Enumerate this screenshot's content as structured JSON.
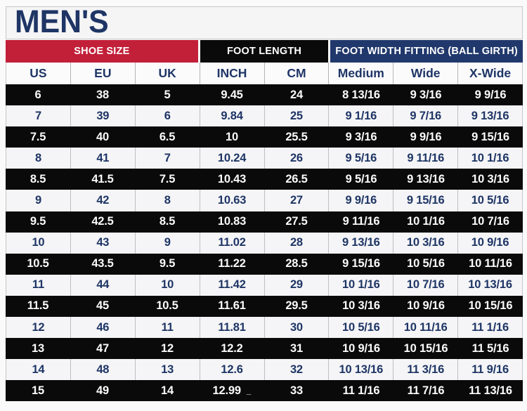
{
  "title": "MEN'S",
  "colors": {
    "title_navy": "#1E3565",
    "group_red": "#C21F39",
    "group_black": "#0A0A0B",
    "group_navy": "#20386B",
    "row_dark_bg": "#0A0A0B",
    "row_light_bg": "#F5F5F7",
    "row_light_text": "#1E3565",
    "row_dark_text": "#FAFAFA",
    "border_gray": "#C7C7CA"
  },
  "header_groups": [
    {
      "label": "SHOE SIZE",
      "color": "#C21F39",
      "columns_span": 3
    },
    {
      "label": "FOOT LENGTH",
      "color": "#0A0A0B",
      "columns_span": 2
    },
    {
      "label": "FOOT WIDTH FITTING (BALL GIRTH)",
      "color": "#20386B",
      "columns_span": 3
    }
  ],
  "stray_mark": "_",
  "chart_data": {
    "type": "table",
    "title": "MEN'S",
    "column_groups": [
      {
        "label": "SHOE SIZE",
        "columns": [
          "US",
          "EU",
          "UK"
        ]
      },
      {
        "label": "FOOT LENGTH",
        "columns": [
          "INCH",
          "CM"
        ]
      },
      {
        "label": "FOOT WIDTH FITTING (BALL GIRTH)",
        "columns": [
          "Medium",
          "Wide",
          "X-Wide"
        ]
      }
    ],
    "columns": [
      "US",
      "EU",
      "UK",
      "INCH",
      "CM",
      "Medium",
      "Wide",
      "X-Wide"
    ],
    "rows": [
      [
        "6",
        "38",
        "5",
        "9.45",
        "24",
        "8 13/16",
        "9 3/16",
        "9 9/16"
      ],
      [
        "7",
        "39",
        "6",
        "9.84",
        "25",
        "9 1/16",
        "9 7/16",
        "9 13/16"
      ],
      [
        "7.5",
        "40",
        "6.5",
        "10",
        "25.5",
        "9 3/16",
        "9 9/16",
        "9 15/16"
      ],
      [
        "8",
        "41",
        "7",
        "10.24",
        "26",
        "9 5/16",
        "9 11/16",
        "10 1/16"
      ],
      [
        "8.5",
        "41.5",
        "7.5",
        "10.43",
        "26.5",
        "9 5/16",
        "9 13/16",
        "10 3/16"
      ],
      [
        "9",
        "42",
        "8",
        "10.63",
        "27",
        "9 9/16",
        "9 15/16",
        "10 5/16"
      ],
      [
        "9.5",
        "42.5",
        "8.5",
        "10.83",
        "27.5",
        "9 11/16",
        "10 1/16",
        "10 7/16"
      ],
      [
        "10",
        "43",
        "9",
        "11.02",
        "28",
        "9 13/16",
        "10 3/16",
        "10 9/16"
      ],
      [
        "10.5",
        "43.5",
        "9.5",
        "11.22",
        "28.5",
        "9 15/16",
        "10 5/16",
        "10 11/16"
      ],
      [
        "11",
        "44",
        "10",
        "11.42",
        "29",
        "10 1/16",
        "10 7/16",
        "10 13/16"
      ],
      [
        "11.5",
        "45",
        "10.5",
        "11.61",
        "29.5",
        "10 3/16",
        "10 9/16",
        "10 15/16"
      ],
      [
        "12",
        "46",
        "11",
        "11.81",
        "30",
        "10 5/16",
        "10 11/16",
        "11 1/16"
      ],
      [
        "13",
        "47",
        "12",
        "12.2",
        "31",
        "10 9/16",
        "10 15/16",
        "11 5/16"
      ],
      [
        "14",
        "48",
        "13",
        "12.6",
        "32",
        "10 13/16",
        "11 3/16",
        "11 9/16"
      ],
      [
        "15",
        "49",
        "14",
        "12.99",
        "33",
        "11 1/16",
        "11 7/16",
        "11 13/16"
      ]
    ]
  }
}
